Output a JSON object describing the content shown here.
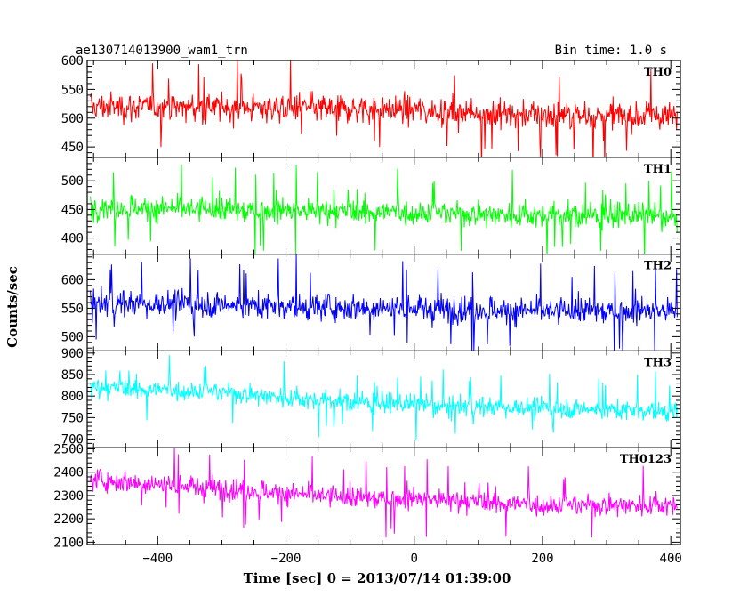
{
  "chart_data": {
    "type": "line",
    "title": "ae130714013900_wam1_trn",
    "subtitle": "Bin time: 1.0 s",
    "xlabel": "Time [sec] 0 = 2013/07/14 01:39:00",
    "ylabel": "Counts/sec",
    "xlim": [
      -510,
      415
    ],
    "x_range_data": [
      -505,
      410
    ],
    "x_ticks": [
      -400,
      -200,
      0,
      200,
      400
    ],
    "x_tick_labels": [
      "−400",
      "−200",
      "0",
      "200",
      "400"
    ],
    "panels": [
      {
        "name": "TH0",
        "color": "#ff0000",
        "ylim": [
          432,
          600
        ],
        "y_ticks": [
          450,
          500,
          550,
          600
        ],
        "mean": 513,
        "amp": 32,
        "trend": [
          [
            -505,
            520
          ],
          [
            -250,
            518
          ],
          [
            0,
            515
          ],
          [
            200,
            505
          ],
          [
            410,
            503
          ]
        ]
      },
      {
        "name": "TH1",
        "color": "#00ff00",
        "ylim": [
          372,
          541
        ],
        "y_ticks": [
          400,
          450,
          500
        ],
        "mean": 445,
        "amp": 28,
        "trend": [
          [
            -505,
            455
          ],
          [
            -250,
            448
          ],
          [
            0,
            445
          ],
          [
            200,
            440
          ],
          [
            410,
            438
          ]
        ]
      },
      {
        "name": "TH2",
        "color": "#0000ff",
        "ylim": [
          475,
          645
        ],
        "y_ticks": [
          500,
          550,
          600
        ],
        "mean": 552,
        "amp": 30,
        "trend": [
          [
            -505,
            560
          ],
          [
            -250,
            555
          ],
          [
            0,
            550
          ],
          [
            200,
            545
          ],
          [
            410,
            545
          ]
        ]
      },
      {
        "name": "TH3",
        "color": "#00ffff",
        "ylim": [
          680,
          905
        ],
        "y_ticks": [
          700,
          750,
          800,
          850,
          900
        ],
        "mean": 790,
        "amp": 30,
        "trend": [
          [
            -505,
            820
          ],
          [
            -300,
            810
          ],
          [
            -150,
            790
          ],
          [
            0,
            780
          ],
          [
            200,
            772
          ],
          [
            410,
            765
          ]
        ]
      },
      {
        "name": "TH0123",
        "color": "#ff00ff",
        "ylim": [
          2090,
          2505
        ],
        "y_ticks": [
          2100,
          2200,
          2300,
          2400,
          2500
        ],
        "mean": 2300,
        "amp": 60,
        "trend": [
          [
            -505,
            2370
          ],
          [
            -300,
            2330
          ],
          [
            -100,
            2290
          ],
          [
            0,
            2285
          ],
          [
            200,
            2260
          ],
          [
            410,
            2260
          ]
        ]
      }
    ]
  }
}
